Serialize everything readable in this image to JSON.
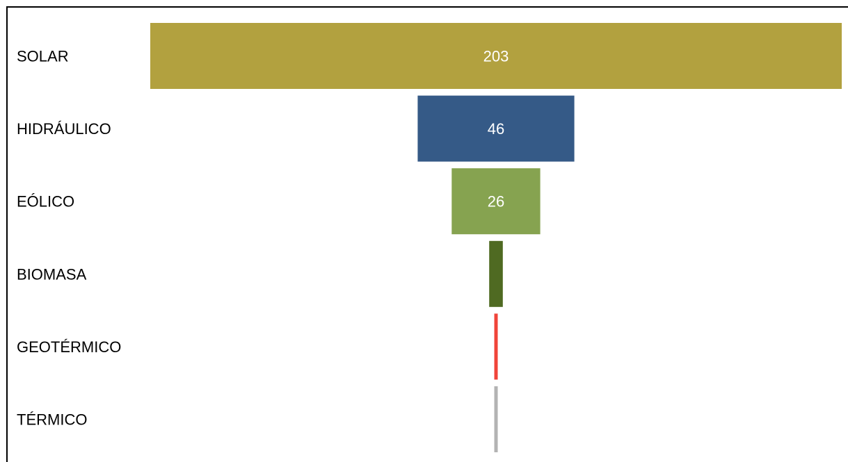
{
  "chart_data": {
    "type": "bar",
    "subtype": "funnel",
    "orientation": "horizontal",
    "categories": [
      "SOLAR",
      "HIDRÁULICO",
      "EÓLICO",
      "BIOMASA",
      "GEOTÉRMICO",
      "TÉRMICO"
    ],
    "values": [
      203,
      46,
      26,
      4,
      1,
      1
    ],
    "data_labels": [
      "203",
      "46",
      "26",
      "",
      "",
      ""
    ],
    "colors": [
      "#B2A13F",
      "#355A87",
      "#86A350",
      "#4F6A22",
      "#F0443A",
      "#B3B3B3"
    ],
    "title": "",
    "xlabel": "",
    "ylabel": "",
    "grid": false,
    "legend": "none"
  }
}
